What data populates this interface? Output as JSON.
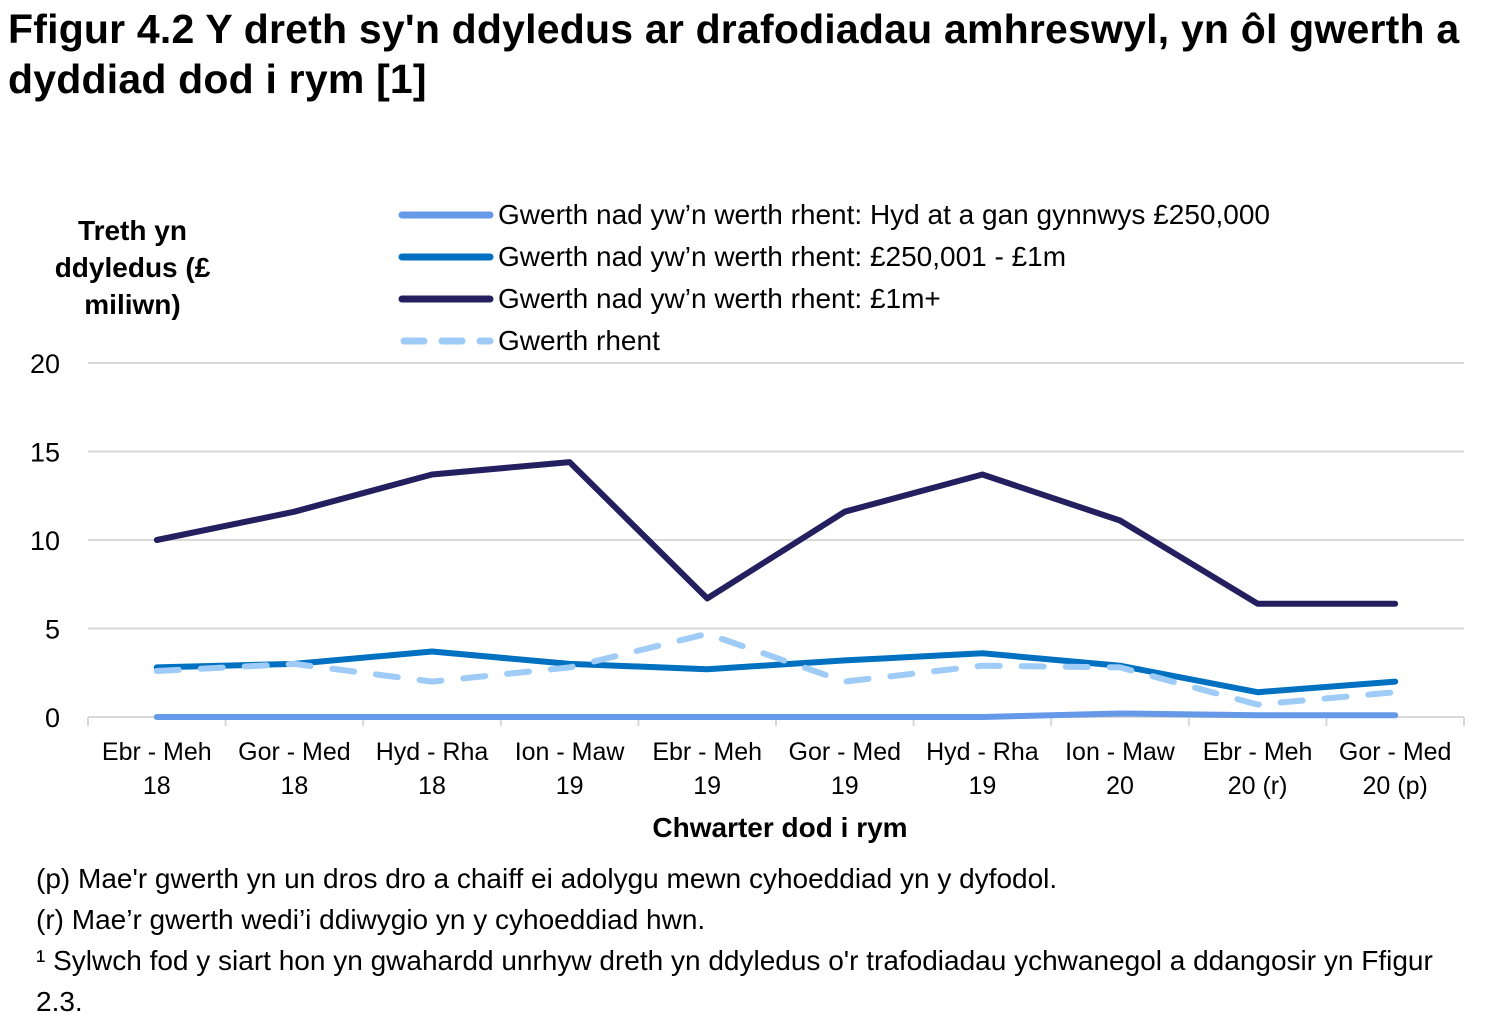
{
  "title": "Ffigur 4.2  Y dreth sy'n ddyledus ar drafodiadau amhreswyl, yn ôl gwerth a dyddiad dod i rym [1]",
  "y_axis_label": "Treth yn ddyledus (£ miliwn)",
  "x_axis_label": "Chwarter dod i rym",
  "legend": [
    {
      "label": "Gwerth nad yw’n werth rhent: Hyd at a gan gynnwys £250,000",
      "color": "#6699e8",
      "style": "solid"
    },
    {
      "label": "Gwerth nad yw’n werth rhent: £250,001 - £1m",
      "color": "#0070c0",
      "style": "solid"
    },
    {
      "label": "Gwerth nad yw’n werth rhent: £1m+",
      "color": "#24205f",
      "style": "solid"
    },
    {
      "label": "Gwerth rhent",
      "color": "#9fcbf7",
      "style": "dashed"
    }
  ],
  "y_ticks": [
    "20",
    "15",
    "10",
    "5",
    "0"
  ],
  "x_ticks": [
    {
      "line1": "Ebr - Meh",
      "line2": "18"
    },
    {
      "line1": "Gor - Med",
      "line2": "18"
    },
    {
      "line1": "Hyd - Rha",
      "line2": "18"
    },
    {
      "line1": "Ion - Maw",
      "line2": "19"
    },
    {
      "line1": "Ebr - Meh",
      "line2": "19"
    },
    {
      "line1": "Gor - Med",
      "line2": "19"
    },
    {
      "line1": "Hyd - Rha",
      "line2": "19"
    },
    {
      "line1": "Ion - Maw",
      "line2": "20"
    },
    {
      "line1": "Ebr - Meh",
      "line2": "20 (r)"
    },
    {
      "line1": "Gor - Med",
      "line2": "20 (p)"
    }
  ],
  "notes": [
    "(p) Mae'r gwerth yn un dros dro a chaiff ei adolygu mewn cyhoeddiad yn y dyfodol.",
    "(r) Mae’r gwerth wedi’i ddiwygio yn y cyhoeddiad hwn.",
    "¹ Sylwch fod y siart hon yn gwahardd unrhyw dreth yn ddyledus o'r trafodiadau ychwanegol a ddangosir yn Ffigur 2.3."
  ],
  "chart_data": {
    "type": "line",
    "title": "Ffigur 4.2 Y dreth sy'n ddyledus ar drafodiadau amhreswyl, yn ôl gwerth a dyddiad dod i rym [1]",
    "xlabel": "Chwarter dod i rym",
    "ylabel": "Treth yn ddyledus (£ miliwn)",
    "ylim": [
      0,
      20
    ],
    "y_ticks": [
      0,
      5,
      10,
      15,
      20
    ],
    "grid": true,
    "legend_position": "top",
    "categories": [
      "Ebr - Meh 18",
      "Gor - Med 18",
      "Hyd - Rha 18",
      "Ion - Maw 19",
      "Ebr - Meh 19",
      "Gor - Med 19",
      "Hyd - Rha 19",
      "Ion - Maw 20",
      "Ebr - Meh 20 (r)",
      "Gor - Med 20 (p)"
    ],
    "series": [
      {
        "name": "Gwerth nad yw’n werth rhent: Hyd at a gan gynnwys £250,000",
        "color": "#6699e8",
        "dash": false,
        "values": [
          0.0,
          0.0,
          0.0,
          0.0,
          0.0,
          0.0,
          0.0,
          0.2,
          0.1,
          0.1
        ]
      },
      {
        "name": "Gwerth nad yw’n werth rhent: £250,001 - £1m",
        "color": "#0070c0",
        "dash": false,
        "values": [
          2.8,
          3.0,
          3.7,
          3.0,
          2.7,
          3.2,
          3.6,
          2.9,
          1.4,
          2.0
        ]
      },
      {
        "name": "Gwerth nad yw’n werth rhent: £1m+",
        "color": "#24205f",
        "dash": false,
        "values": [
          10.0,
          11.6,
          13.7,
          14.4,
          6.7,
          11.6,
          13.7,
          11.1,
          6.4,
          6.4
        ]
      },
      {
        "name": "Gwerth rhent",
        "color": "#9fcbf7",
        "dash": true,
        "values": [
          2.6,
          3.0,
          2.0,
          2.8,
          4.7,
          2.0,
          2.9,
          2.8,
          0.7,
          1.4
        ]
      }
    ]
  }
}
